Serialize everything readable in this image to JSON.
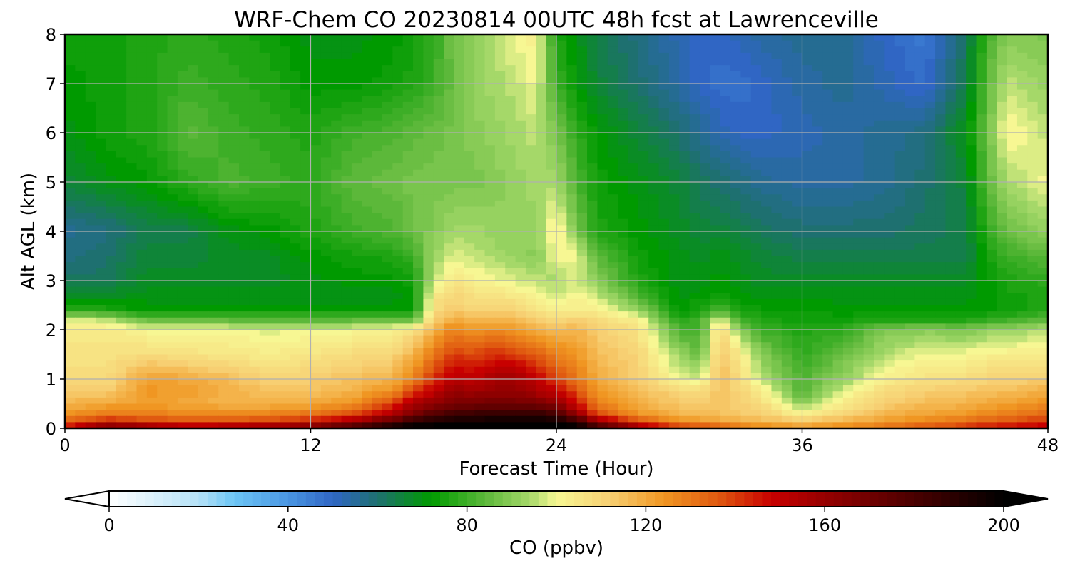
{
  "chart_data": {
    "type": "heatmap",
    "title": "WRF-Chem CO  20230814 00UTC 48h fcst at Lawrenceville",
    "xlabel": "Forecast Time (Hour)",
    "ylabel": "Alt AGL (km)",
    "xlim": [
      0,
      48
    ],
    "ylim": [
      0,
      8
    ],
    "xticks": [
      "0",
      "12",
      "24",
      "36",
      "48"
    ],
    "yticks": [
      "0",
      "1",
      "2",
      "3",
      "4",
      "5",
      "6",
      "7",
      "8"
    ],
    "grid": true,
    "colorbar": {
      "label": "CO  (ppbv)",
      "range": [
        0,
        200
      ],
      "ticks": [
        "0",
        "40",
        "80",
        "120",
        "160",
        "200"
      ],
      "extend": "both",
      "stops": [
        {
          "v": 0,
          "c": "#ffffff"
        },
        {
          "v": 20,
          "c": "#b5e1f7"
        },
        {
          "v": 28,
          "c": "#6cc5f5"
        },
        {
          "v": 40,
          "c": "#4a96e2"
        },
        {
          "v": 50,
          "c": "#3066c4"
        },
        {
          "v": 60,
          "c": "#1e7070"
        },
        {
          "v": 72,
          "c": "#009a00"
        },
        {
          "v": 84,
          "c": "#5cb83a"
        },
        {
          "v": 94,
          "c": "#a5d869"
        },
        {
          "v": 100,
          "c": "#f7f793"
        },
        {
          "v": 112,
          "c": "#f7cf72"
        },
        {
          "v": 124,
          "c": "#f09622"
        },
        {
          "v": 136,
          "c": "#e05a10"
        },
        {
          "v": 148,
          "c": "#c80000"
        },
        {
          "v": 160,
          "c": "#960000"
        },
        {
          "v": 180,
          "c": "#4a0000"
        },
        {
          "v": 200,
          "c": "#000000"
        }
      ]
    },
    "grid_x": [
      0,
      2,
      4,
      6,
      8,
      10,
      12,
      14,
      16,
      17,
      18,
      19,
      20,
      21,
      22,
      23,
      24,
      25,
      26,
      28,
      30,
      31,
      32,
      33,
      34,
      36,
      38,
      40,
      42,
      44,
      45,
      46,
      48
    ],
    "grid_y": [
      0,
      0.1,
      0.25,
      0.5,
      0.75,
      1,
      1.5,
      2,
      2.2,
      2.4,
      2.7,
      3,
      3.5,
      4,
      5,
      6,
      7,
      8
    ],
    "values": [
      [
        150,
        178,
        172,
        165,
        168,
        170,
        178,
        190,
        200,
        200,
        200,
        200,
        200,
        200,
        200,
        200,
        200,
        200,
        190,
        165,
        148,
        145,
        140,
        135,
        130,
        125,
        130,
        135,
        140,
        145,
        148,
        150,
        155
      ],
      [
        138,
        150,
        145,
        140,
        142,
        145,
        150,
        165,
        185,
        195,
        198,
        200,
        200,
        200,
        200,
        200,
        200,
        195,
        170,
        145,
        130,
        128,
        125,
        122,
        120,
        116,
        120,
        125,
        130,
        135,
        138,
        140,
        145
      ],
      [
        125,
        132,
        130,
        128,
        128,
        130,
        133,
        140,
        155,
        170,
        180,
        185,
        188,
        188,
        190,
        190,
        185,
        165,
        140,
        125,
        118,
        116,
        115,
        113,
        112,
        105,
        112,
        118,
        122,
        125,
        128,
        130,
        135
      ],
      [
        118,
        120,
        122,
        120,
        118,
        118,
        120,
        125,
        140,
        155,
        162,
        168,
        168,
        170,
        170,
        168,
        162,
        145,
        128,
        120,
        113,
        112,
        115,
        112,
        108,
        90,
        104,
        112,
        116,
        118,
        120,
        122,
        125
      ],
      [
        112,
        112,
        124,
        122,
        118,
        115,
        115,
        118,
        125,
        140,
        150,
        160,
        158,
        160,
        160,
        155,
        150,
        138,
        124,
        116,
        110,
        108,
        115,
        110,
        104,
        82,
        98,
        108,
        112,
        114,
        115,
        116,
        120
      ],
      [
        108,
        108,
        122,
        120,
        116,
        110,
        112,
        115,
        118,
        128,
        142,
        152,
        150,
        158,
        158,
        150,
        140,
        130,
        120,
        112,
        100,
        96,
        116,
        108,
        96,
        82,
        92,
        102,
        106,
        108,
        110,
        110,
        112
      ],
      [
        106,
        106,
        108,
        106,
        105,
        103,
        105,
        108,
        110,
        118,
        130,
        140,
        138,
        142,
        140,
        135,
        128,
        124,
        116,
        110,
        92,
        86,
        114,
        104,
        90,
        78,
        86,
        95,
        100,
        100,
        102,
        102,
        104
      ],
      [
        104,
        104,
        100,
        100,
        100,
        98,
        99,
        100,
        102,
        106,
        118,
        128,
        124,
        126,
        124,
        120,
        116,
        118,
        112,
        106,
        82,
        80,
        110,
        90,
        80,
        76,
        78,
        88,
        90,
        88,
        92,
        92,
        96
      ],
      [
        98,
        96,
        86,
        84,
        84,
        84,
        84,
        84,
        84,
        84,
        112,
        120,
        116,
        118,
        116,
        112,
        108,
        112,
        108,
        102,
        76,
        80,
        100,
        80,
        76,
        74,
        74,
        76,
        76,
        76,
        78,
        80,
        84
      ],
      [
        76,
        76,
        72,
        72,
        72,
        72,
        72,
        72,
        72,
        72,
        108,
        114,
        110,
        112,
        110,
        106,
        102,
        104,
        102,
        92,
        72,
        76,
        82,
        75,
        73,
        73,
        72,
        72,
        72,
        72,
        72,
        74,
        76
      ],
      [
        68,
        68,
        70,
        70,
        70,
        70,
        70,
        70,
        70,
        72,
        104,
        110,
        106,
        106,
        104,
        100,
        96,
        100,
        96,
        82,
        70,
        72,
        74,
        72,
        70,
        70,
        70,
        70,
        70,
        70,
        72,
        74,
        76
      ],
      [
        62,
        62,
        68,
        68,
        68,
        68,
        70,
        72,
        72,
        74,
        96,
        106,
        102,
        100,
        98,
        96,
        94,
        98,
        90,
        76,
        70,
        70,
        72,
        70,
        68,
        68,
        68,
        68,
        68,
        68,
        72,
        76,
        78
      ],
      [
        58,
        60,
        66,
        66,
        68,
        68,
        72,
        74,
        76,
        80,
        92,
        98,
        96,
        94,
        92,
        90,
        100,
        100,
        84,
        74,
        70,
        68,
        70,
        68,
        66,
        64,
        64,
        64,
        64,
        64,
        74,
        80,
        84
      ],
      [
        56,
        58,
        64,
        64,
        70,
        72,
        76,
        80,
        82,
        86,
        90,
        94,
        94,
        92,
        92,
        92,
        104,
        88,
        76,
        72,
        68,
        66,
        66,
        64,
        62,
        60,
        60,
        60,
        62,
        64,
        78,
        86,
        92
      ],
      [
        66,
        70,
        72,
        78,
        82,
        80,
        78,
        84,
        86,
        88,
        88,
        88,
        88,
        90,
        92,
        94,
        94,
        82,
        74,
        70,
        66,
        62,
        60,
        58,
        56,
        54,
        54,
        56,
        60,
        66,
        84,
        94,
        100
      ],
      [
        70,
        74,
        76,
        84,
        80,
        78,
        76,
        80,
        82,
        84,
        86,
        88,
        90,
        92,
        94,
        96,
        88,
        78,
        72,
        66,
        60,
        56,
        52,
        50,
        50,
        52,
        54,
        56,
        58,
        70,
        86,
        102,
        96
      ],
      [
        72,
        74,
        76,
        80,
        78,
        76,
        72,
        72,
        74,
        76,
        80,
        86,
        92,
        94,
        96,
        100,
        80,
        72,
        66,
        60,
        54,
        50,
        48,
        48,
        50,
        54,
        56,
        52,
        48,
        64,
        84,
        96,
        92
      ],
      [
        74,
        74,
        76,
        78,
        76,
        74,
        70,
        70,
        72,
        74,
        78,
        88,
        92,
        96,
        100,
        102,
        76,
        70,
        64,
        58,
        52,
        50,
        50,
        52,
        54,
        56,
        56,
        50,
        46,
        62,
        80,
        90,
        88
      ]
    ]
  }
}
